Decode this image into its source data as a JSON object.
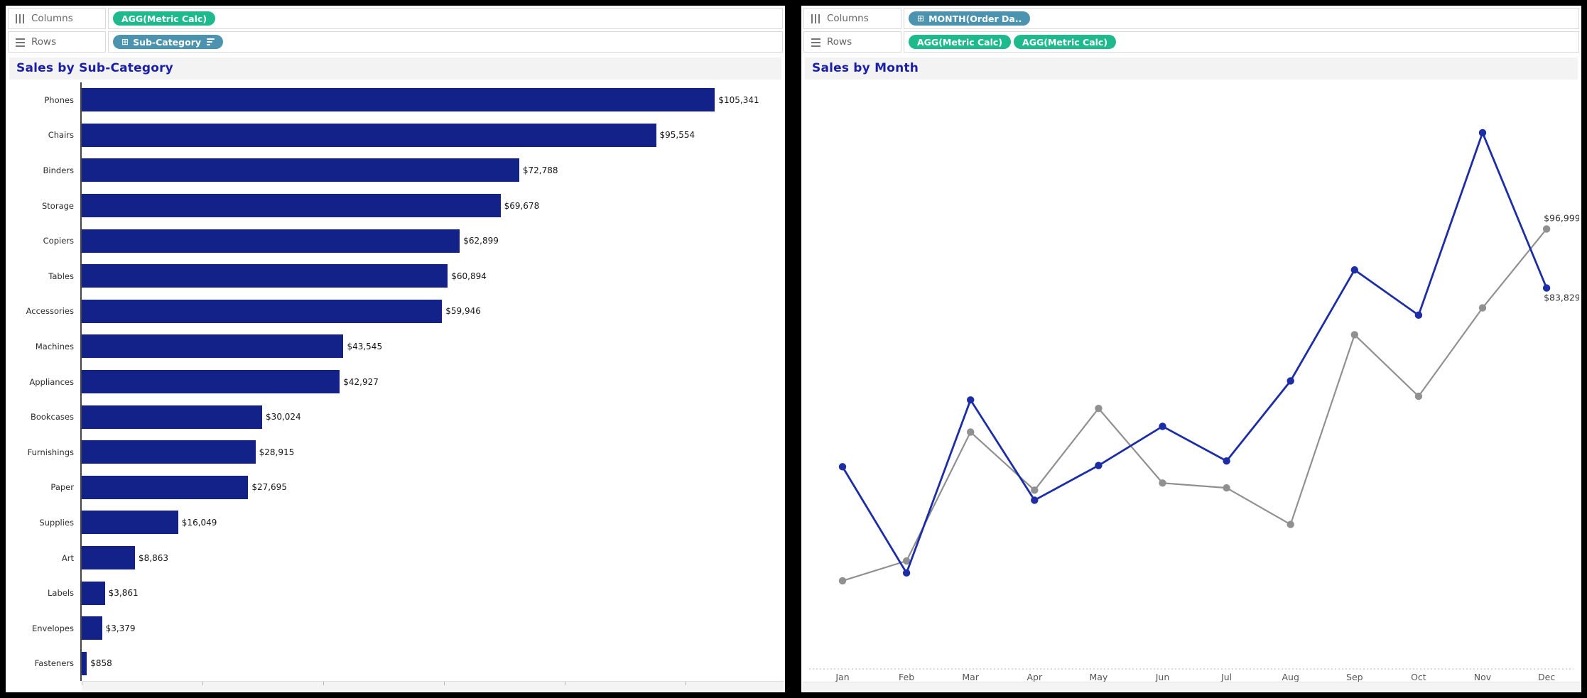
{
  "colors": {
    "bar_fill": "#122289",
    "line_blue": "#1c2da6",
    "line_gray": "#909090",
    "pill_green": "#1eb98c",
    "pill_blue": "#4b93ae",
    "title_text": "#1a1fa8",
    "title_band_bg": "#f3f3f3",
    "axis_dotted": "#c9c9c9",
    "shelf_text": "#666666"
  },
  "icons": {
    "columns_glyph_name": "columns-icon",
    "rows_glyph_name": "rows-icon",
    "expand_glyph": "⊞"
  },
  "left_panel": {
    "shelves": {
      "columns_label": "Columns",
      "rows_label": "Rows",
      "columns_pills": [
        {
          "label": "AGG(Metric Calc)"
        }
      ],
      "rows_pills": [
        {
          "label": "Sub-Category",
          "expand_glyph": "⊞",
          "sorted": true
        }
      ]
    }
  },
  "right_panel": {
    "shelves": {
      "columns_label": "Columns",
      "rows_label": "Rows",
      "columns_pills": [
        {
          "label": "MONTH(Order Da..",
          "expand_glyph": "⊞"
        }
      ],
      "rows_pills": [
        {
          "label": "AGG(Metric Calc)"
        },
        {
          "label": "AGG(Metric Calc)"
        }
      ]
    }
  },
  "chart_data": [
    {
      "type": "bar",
      "title": "Sales by Sub-Category",
      "orientation": "horizontal",
      "xlabel": "",
      "ylabel": "Sub-Category",
      "xlim": [
        0,
        117000
      ],
      "grid": false,
      "bar_color": "#122289",
      "categories": [
        "Phones",
        "Chairs",
        "Binders",
        "Storage",
        "Copiers",
        "Tables",
        "Accessories",
        "Machines",
        "Appliances",
        "Bookcases",
        "Furnishings",
        "Paper",
        "Supplies",
        "Art",
        "Labels",
        "Envelopes",
        "Fasteners"
      ],
      "values": [
        105341,
        95554,
        72788,
        69678,
        62899,
        60894,
        59946,
        43545,
        42927,
        30024,
        28915,
        27695,
        16049,
        8863,
        3861,
        3379,
        858
      ],
      "value_labels": [
        "$105,341",
        "$95,554",
        "$72,788",
        "$69,678",
        "$62,899",
        "$60,894",
        "$59,946",
        "$43,545",
        "$42,927",
        "$30,024",
        "$28,915",
        "$27,695",
        "$16,049",
        "$8,863",
        "$3,861",
        "$3,379",
        "$858"
      ]
    },
    {
      "type": "line",
      "title": "Sales by Month",
      "xlabel": "",
      "ylabel": "",
      "ylim": [
        0,
        130000
      ],
      "grid": false,
      "y_axis_labels_visible": false,
      "x": [
        "Jan",
        "Feb",
        "Mar",
        "Apr",
        "May",
        "Jun",
        "Jul",
        "Aug",
        "Sep",
        "Oct",
        "Nov",
        "Dec"
      ],
      "series": [
        {
          "name": "AGG(Metric Calc)",
          "color": "#1c2da6",
          "marker": "circle",
          "values": [
            43971,
            20301,
            58872,
            36522,
            44261,
            52982,
            45264,
            63121,
            87867,
            77777,
            118448,
            83829
          ],
          "end_label": "$83,829",
          "end_label_position": "below"
        },
        {
          "name": "AGG(Metric Calc)",
          "color": "#909090",
          "marker": "circle",
          "values": [
            18542,
            22979,
            51716,
            38750,
            56988,
            40344,
            39262,
            31115,
            73410,
            59687,
            79412,
            96999
          ],
          "end_label": "$96,999",
          "end_label_position": "above"
        }
      ]
    }
  ]
}
